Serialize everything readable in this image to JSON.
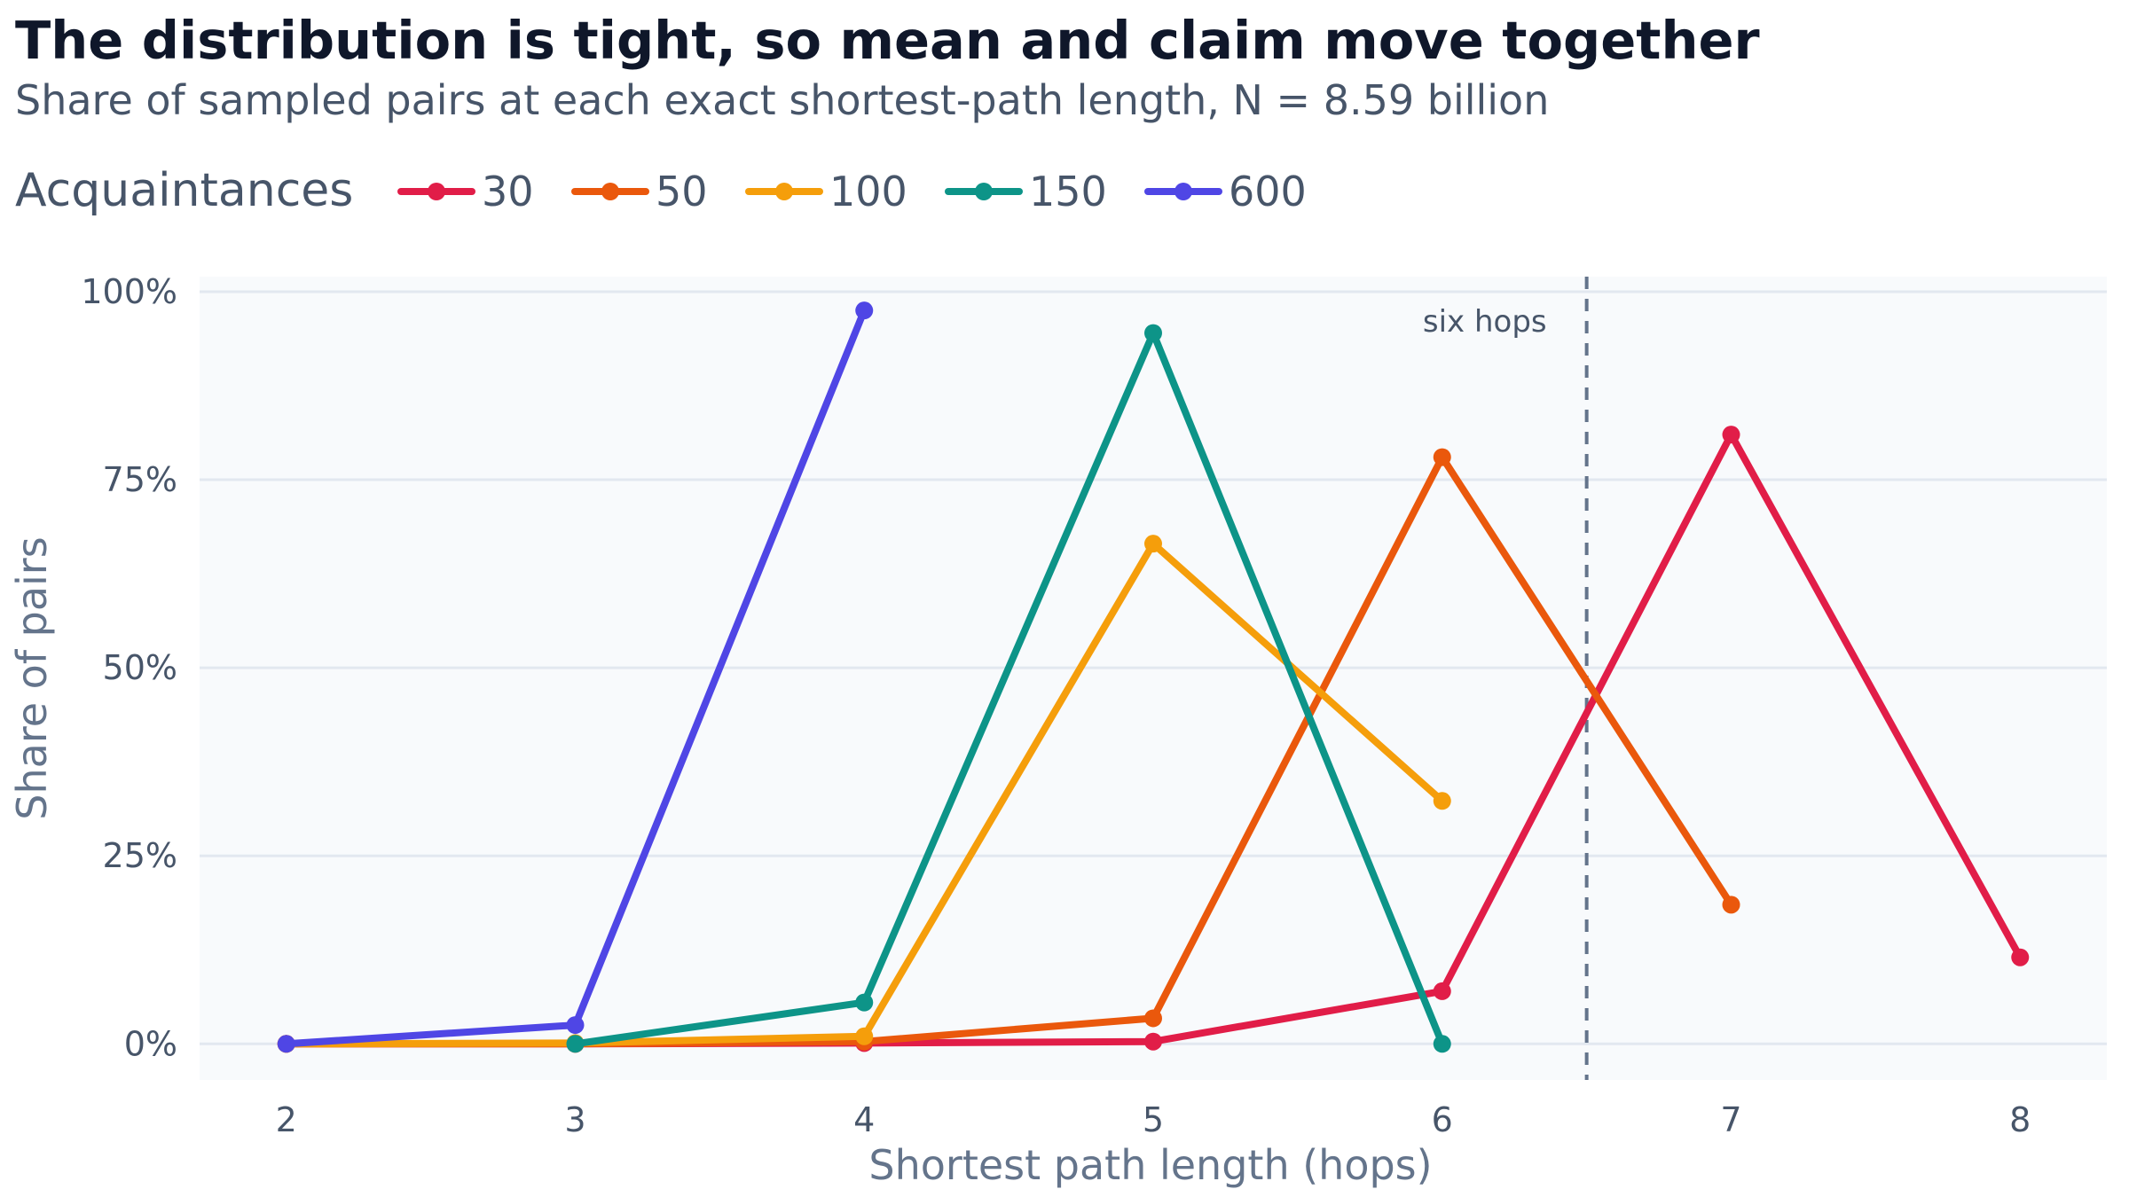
{
  "chart_data": {
    "type": "line",
    "title": "The distribution is tight, so mean and claim move together",
    "subtitle": "Share of sampled pairs at each exact shortest-path length, N = 8.59 billion",
    "xlabel": "Shortest path length (hops)",
    "ylabel": "Share of pairs",
    "legend_title": "Acquaintances",
    "legend_position": "top-left",
    "x_ticks": [
      2,
      3,
      4,
      5,
      6,
      7,
      8
    ],
    "y_ticks": [
      0,
      25,
      50,
      75,
      100
    ],
    "y_tick_labels": [
      "0%",
      "25%",
      "50%",
      "75%",
      "100%"
    ],
    "xlim": [
      1.7,
      8.3
    ],
    "ylim": [
      -4.8,
      102
    ],
    "grid": "horizontal",
    "annotation": {
      "text": "six hops",
      "x": 6.5
    },
    "series": [
      {
        "name": "30",
        "color": "#e11d48",
        "x": [
          2,
          3,
          4,
          5,
          6,
          7,
          8
        ],
        "y": [
          0,
          0,
          0.1,
          0.3,
          7,
          81,
          11.5
        ]
      },
      {
        "name": "50",
        "color": "#ea580c",
        "x": [
          2,
          3,
          4,
          5,
          6,
          7
        ],
        "y": [
          0,
          0,
          0.3,
          3.4,
          78,
          18.5
        ]
      },
      {
        "name": "100",
        "color": "#f59e0b",
        "x": [
          2,
          3,
          4,
          5,
          6
        ],
        "y": [
          0,
          0.1,
          1,
          66.5,
          32.3
        ]
      },
      {
        "name": "150",
        "color": "#0d9488",
        "x": [
          3,
          4,
          5,
          6
        ],
        "y": [
          0,
          5.5,
          94.5,
          0
        ]
      },
      {
        "name": "600",
        "color": "#4f46e5",
        "x": [
          2,
          3,
          4
        ],
        "y": [
          0,
          2.5,
          97.5
        ]
      }
    ]
  }
}
